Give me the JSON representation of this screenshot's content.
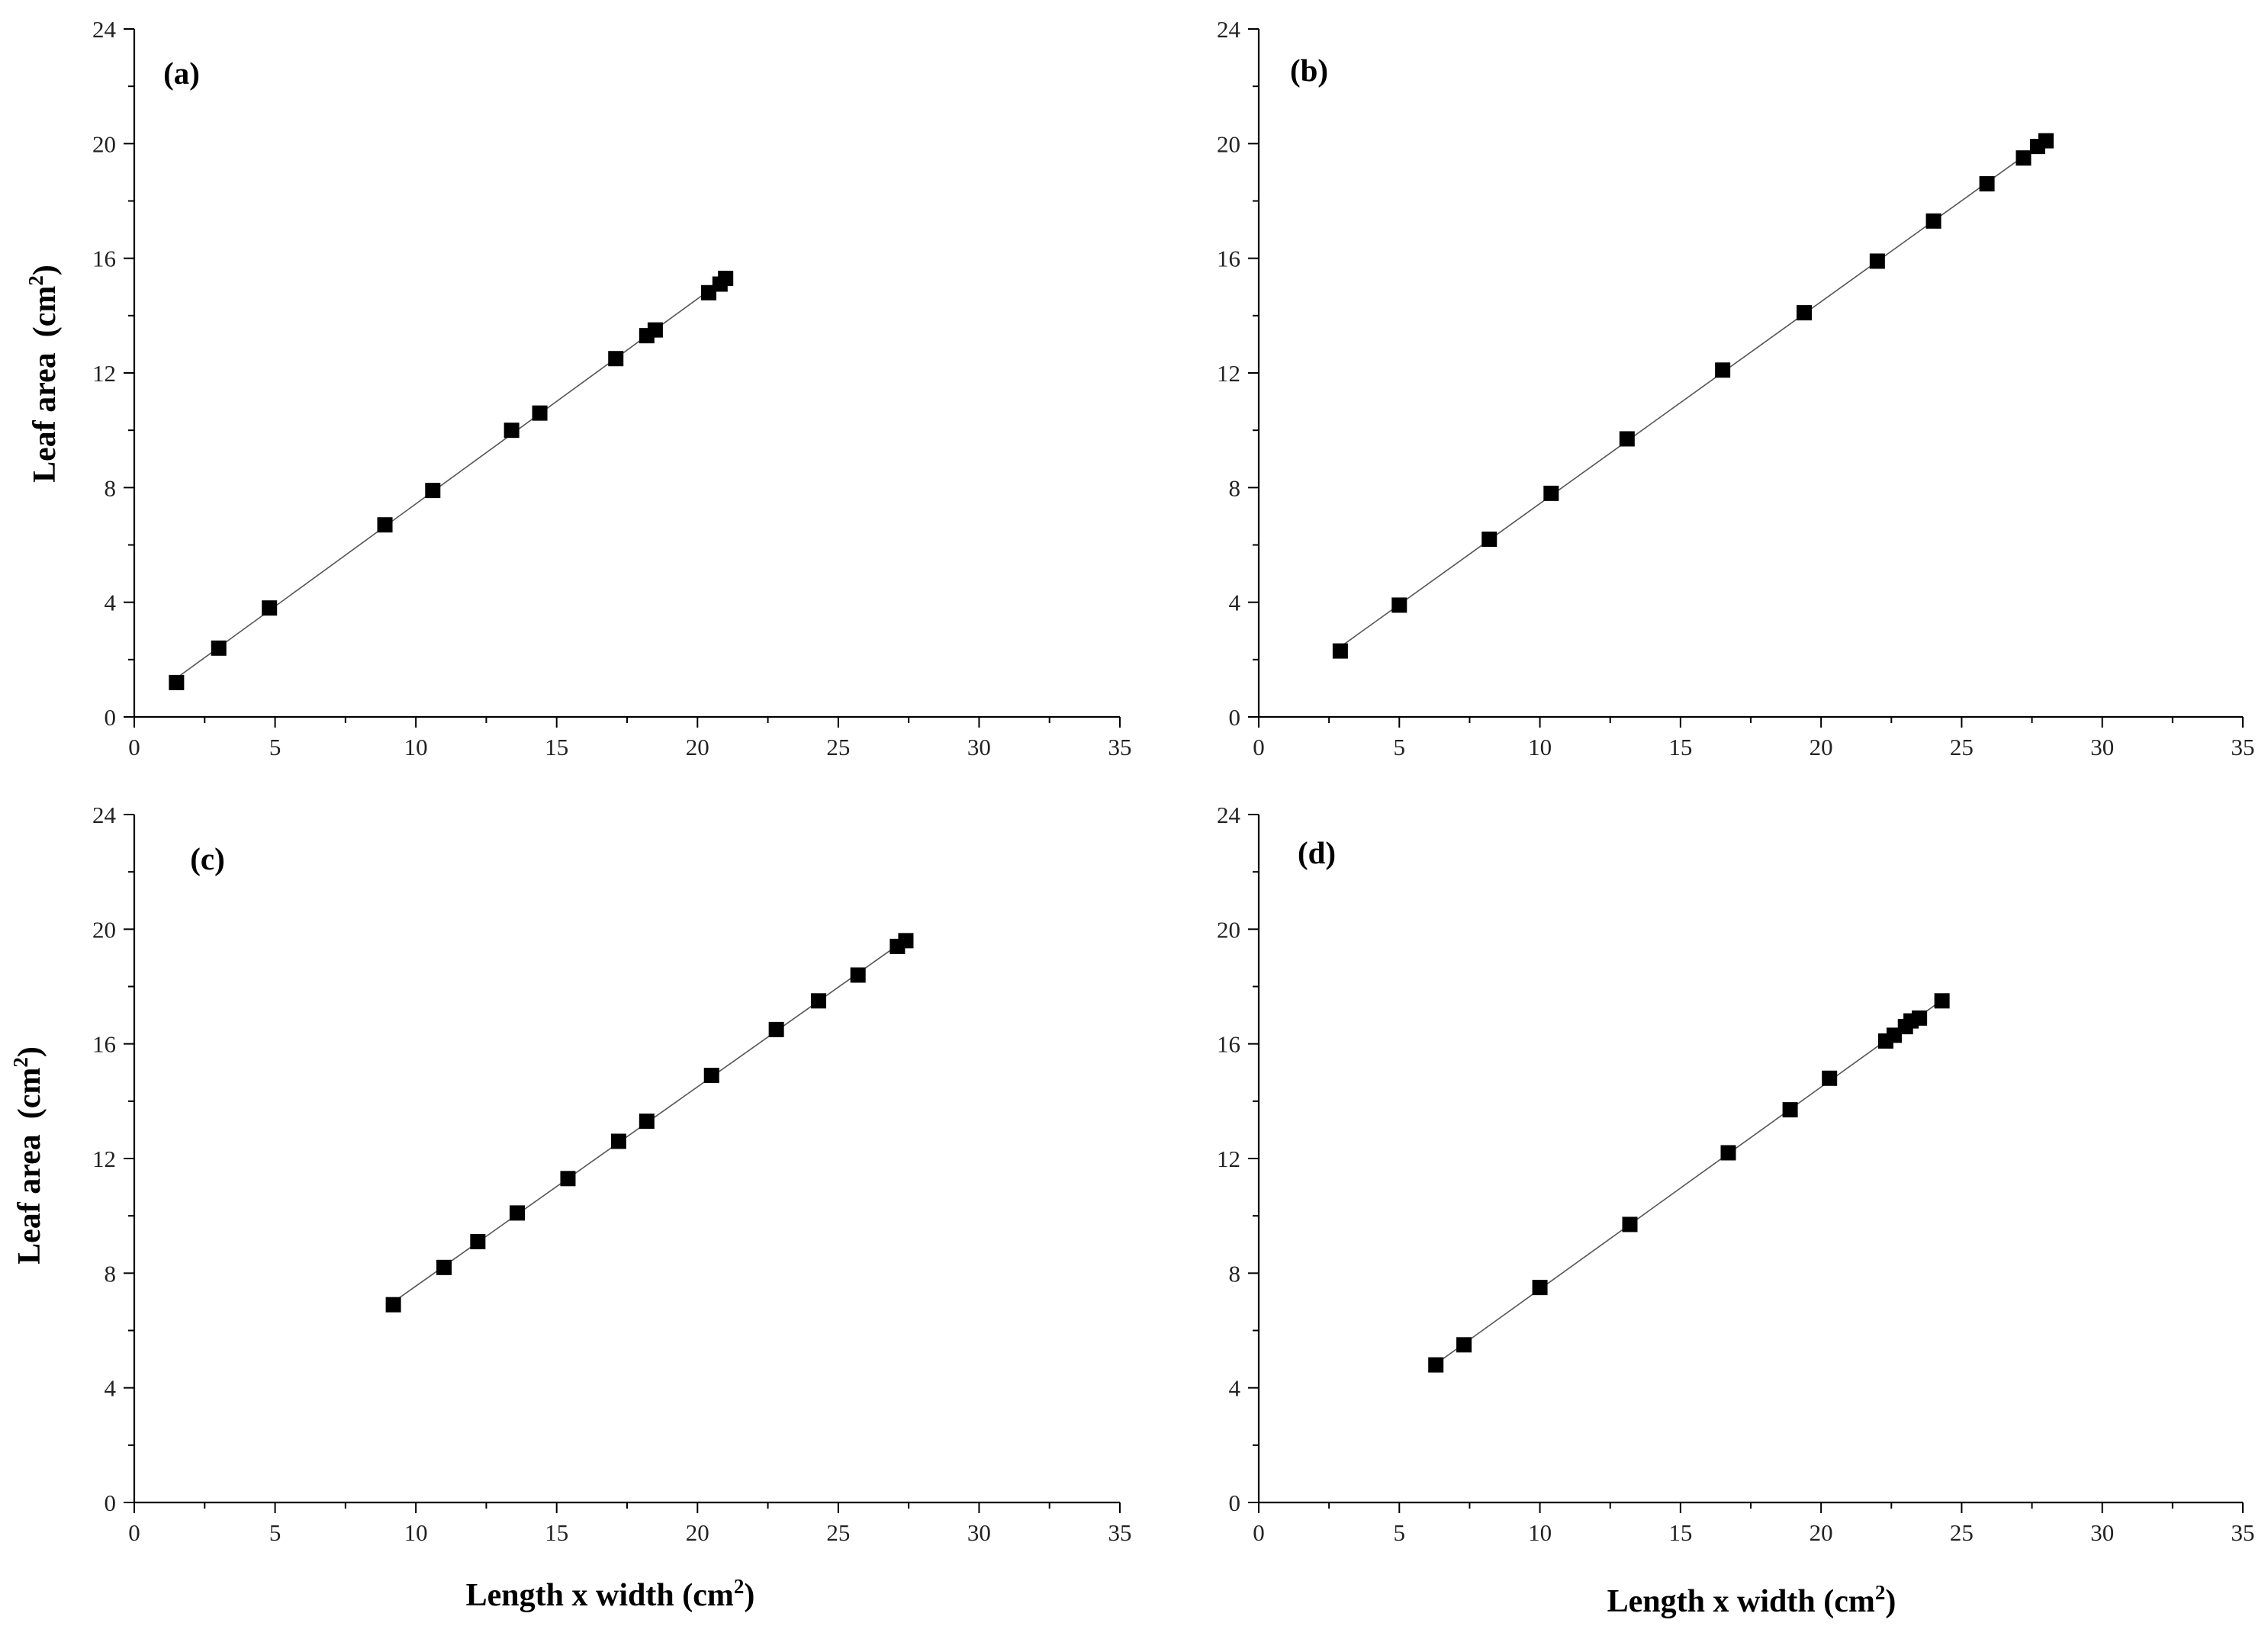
{
  "chart_data": [
    {
      "type": "scatter",
      "panel_label": "(a)",
      "ylabel": "Leaf area",
      "ylabel_unit": "(cm",
      "ylabel_sup": "2",
      "ylabel_close": ")",
      "xlabel": "",
      "xlim": [
        0,
        35
      ],
      "ylim": [
        0,
        24
      ],
      "x_ticks": [
        0,
        5,
        10,
        15,
        20,
        25,
        30,
        35
      ],
      "y_ticks": [
        0,
        4,
        8,
        12,
        16,
        20,
        24
      ],
      "grid": false,
      "fit_line": true,
      "series": [
        {
          "x": [
            1.5,
            3.0,
            4.8,
            8.9,
            10.6,
            13.4,
            14.4,
            17.1,
            18.2,
            18.5,
            20.4,
            20.8,
            21.0
          ],
          "y": [
            1.2,
            2.4,
            3.8,
            6.7,
            7.9,
            10.0,
            10.6,
            12.5,
            13.3,
            13.5,
            14.8,
            15.1,
            15.3
          ]
        }
      ]
    },
    {
      "type": "scatter",
      "panel_label": "(b)",
      "ylabel": "",
      "xlabel": "",
      "xlim": [
        0,
        35
      ],
      "ylim": [
        0,
        24
      ],
      "x_ticks": [
        0,
        5,
        10,
        15,
        20,
        25,
        30,
        35
      ],
      "y_ticks": [
        0,
        4,
        8,
        12,
        16,
        20,
        24
      ],
      "grid": false,
      "fit_line": true,
      "series": [
        {
          "x": [
            2.9,
            5.0,
            8.2,
            10.4,
            13.1,
            16.5,
            19.4,
            22.0,
            24.0,
            25.9,
            27.2,
            27.7,
            28.0
          ],
          "y": [
            2.3,
            3.9,
            6.2,
            7.8,
            9.7,
            12.1,
            14.1,
            15.9,
            17.3,
            18.6,
            19.5,
            19.9,
            20.1
          ]
        }
      ]
    },
    {
      "type": "scatter",
      "panel_label": "(c)",
      "ylabel": "Leaf area",
      "ylabel_unit": "(cm",
      "ylabel_sup": "2",
      "ylabel_close": ")",
      "xlabel": "Length x width (cm",
      "xlabel_sup": "2",
      "xlabel_close": ")",
      "xlim": [
        0,
        35
      ],
      "ylim": [
        0,
        24
      ],
      "x_ticks": [
        0,
        5,
        10,
        15,
        20,
        25,
        30,
        35
      ],
      "y_ticks": [
        0,
        4,
        8,
        12,
        16,
        20,
        24
      ],
      "grid": false,
      "fit_line": true,
      "series": [
        {
          "x": [
            9.2,
            11.0,
            12.2,
            13.6,
            15.4,
            17.2,
            18.2,
            20.5,
            22.8,
            24.3,
            25.7,
            27.1,
            27.4
          ],
          "y": [
            6.9,
            8.2,
            9.1,
            10.1,
            11.3,
            12.6,
            13.3,
            14.9,
            16.5,
            17.5,
            18.4,
            19.4,
            19.6
          ]
        }
      ]
    },
    {
      "type": "scatter",
      "panel_label": "(d)",
      "ylabel": "",
      "xlabel": "Length x width (cm",
      "xlabel_sup": "2",
      "xlabel_close": ")",
      "xlim": [
        0,
        35
      ],
      "ylim": [
        0,
        24
      ],
      "x_ticks": [
        0,
        5,
        10,
        15,
        20,
        25,
        30,
        35
      ],
      "y_ticks": [
        0,
        4,
        8,
        12,
        16,
        20,
        24
      ],
      "grid": false,
      "fit_line": true,
      "series": [
        {
          "x": [
            6.3,
            7.3,
            10.0,
            13.2,
            16.7,
            18.9,
            20.3,
            22.3,
            22.6,
            23.0,
            23.2,
            23.5,
            24.3
          ],
          "y": [
            4.8,
            5.5,
            7.5,
            9.7,
            12.2,
            13.7,
            14.8,
            16.1,
            16.3,
            16.6,
            16.8,
            16.9,
            17.5
          ]
        }
      ]
    }
  ]
}
